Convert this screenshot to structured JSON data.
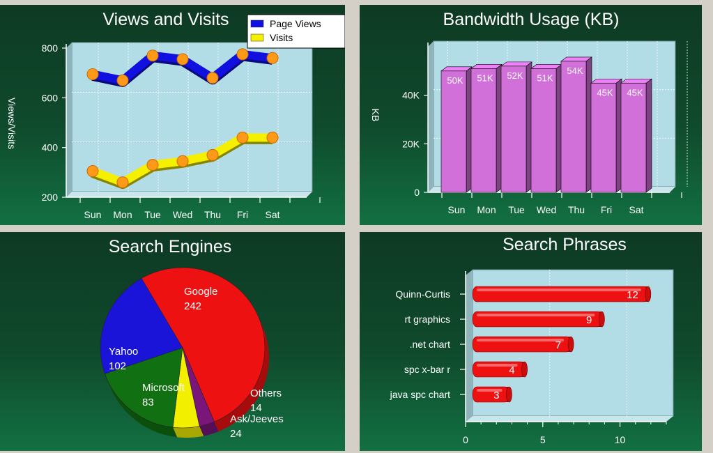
{
  "chart_data": [
    {
      "type": "line",
      "title": "Views and Visits",
      "xlabel": "",
      "ylabel": "Views/Visits",
      "categories": [
        "Sun",
        "Mon",
        "Tue",
        "Wed",
        "Thu",
        "Fri",
        "Sat"
      ],
      "ylim": [
        200,
        800
      ],
      "yticks": [
        "200",
        "400",
        "600",
        "800"
      ],
      "series": [
        {
          "name": "Page Views",
          "color": "#1010e0",
          "values": [
            695,
            670,
            770,
            755,
            680,
            775,
            760
          ]
        },
        {
          "name": "Visits",
          "color": "#f5f000",
          "values": [
            305,
            260,
            330,
            345,
            370,
            440,
            440
          ]
        }
      ],
      "legend": "top-right",
      "grid": true
    },
    {
      "type": "bar",
      "title": "Bandwidth Usage (KB)",
      "xlabel": "",
      "ylabel": "KB",
      "categories": [
        "Sun",
        "Mon",
        "Tue",
        "Wed",
        "Thu",
        "Fri",
        "Sat"
      ],
      "values": [
        50,
        51,
        52,
        51,
        54,
        45,
        45
      ],
      "value_labels": [
        "50K",
        "51K",
        "52K",
        "51K",
        "54K",
        "45K",
        "45K"
      ],
      "unit": "K",
      "ylim": [
        0,
        60
      ],
      "yticks": [
        "0",
        "20K",
        "40K"
      ],
      "bar_color": "#d070d8",
      "grid": true
    },
    {
      "type": "pie",
      "title": "Search Engines",
      "slices": [
        {
          "label": "Google",
          "value": 242,
          "color": "#ee1111"
        },
        {
          "label": "Others",
          "value": 14,
          "color": "#7a157a"
        },
        {
          "label": "Ask/Jeeves",
          "value": 24,
          "color": "#f2f000"
        },
        {
          "label": "Microsoft",
          "value": 83,
          "color": "#117011"
        },
        {
          "label": "Yahoo",
          "value": 102,
          "color": "#1a14d8"
        }
      ]
    },
    {
      "type": "bar",
      "orientation": "horizontal",
      "title": "Search Phrases",
      "xlabel": "",
      "ylabel": "",
      "categories": [
        "Quinn-Curtis",
        "rt graphics",
        ".net chart",
        "spc x-bar r",
        "java spc chart"
      ],
      "values": [
        12,
        9,
        7,
        4,
        3
      ],
      "xlim": [
        0,
        13
      ],
      "xticks": [
        "0",
        "5",
        "10"
      ],
      "bar_color": "#ee1111",
      "grid": true
    }
  ]
}
